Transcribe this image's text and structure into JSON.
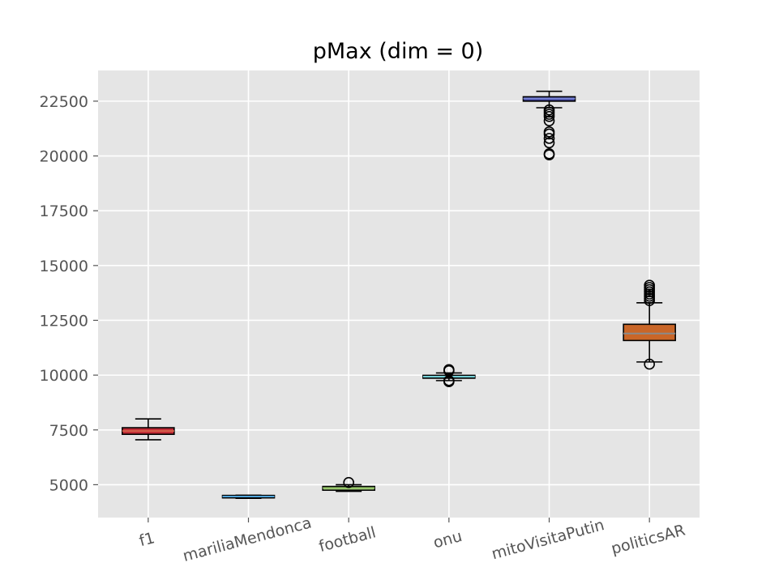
{
  "chart_data": {
    "type": "boxplot",
    "title": "pMax (dim = 0)",
    "xlabel": "",
    "ylabel": "",
    "ylim": [
      3500,
      23900
    ],
    "yticks": [
      "5000",
      "7500",
      "10000",
      "12500",
      "15000",
      "17500",
      "20000",
      "22500"
    ],
    "grid": true,
    "background": "#e5e5e5",
    "grid_color": "#ffffff",
    "categories": [
      "f1",
      "mariliaMendonca",
      "football",
      "onu",
      "mitoVisitaPutin",
      "politicsAR"
    ],
    "series": [
      {
        "category": "f1",
        "whisker_low": 7050,
        "q1": 7300,
        "median": 7450,
        "q3": 7600,
        "whisker_high": 8000,
        "outliers": [],
        "fill": "#c12c36",
        "median_color": "#d4614c"
      },
      {
        "category": "mariliaMendonca",
        "whisker_low": 4380,
        "q1": 4400,
        "median": 4460,
        "q3": 4500,
        "whisker_high": 4520,
        "outliers": [],
        "fill": "#2e6cc4",
        "median_color": "#4fa3d9"
      },
      {
        "category": "football",
        "whisker_low": 4700,
        "q1": 4750,
        "median": 4850,
        "q3": 4920,
        "whisker_high": 5000,
        "outliers": [
          5100
        ],
        "fill": "#b6e08c",
        "median_color": "#8fbf63"
      },
      {
        "category": "onu",
        "whisker_low": 9750,
        "q1": 9860,
        "median": 9930,
        "q3": 9990,
        "whisker_high": 10100,
        "outliers": [
          9700,
          9750,
          10200,
          10250
        ],
        "fill": "#3b9fa8",
        "median_color": "#74cfd6"
      },
      {
        "category": "mitoVisitaPutin",
        "whisker_low": 22200,
        "q1": 22500,
        "median": 22620,
        "q3": 22700,
        "whisker_high": 22950,
        "outliers": [
          20050,
          20100,
          20600,
          20800,
          21000,
          21100,
          21600,
          21800,
          21900,
          22000,
          22100
        ],
        "fill": "#3d3f98",
        "median_color": "#7a86d6"
      },
      {
        "category": "politicsAR",
        "whisker_low": 10600,
        "q1": 11580,
        "median": 11900,
        "q3": 12320,
        "whisker_high": 13300,
        "outliers": [
          10500,
          13400,
          13500,
          13600,
          13700,
          13800,
          13900,
          14000,
          14100
        ],
        "fill": "#c96628",
        "median_color": "#8a8a8a"
      }
    ]
  }
}
